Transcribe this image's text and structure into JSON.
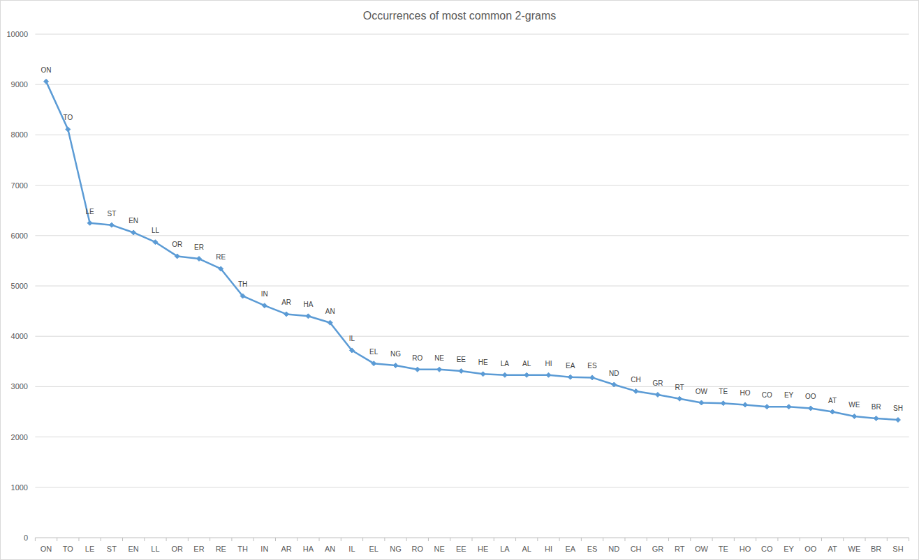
{
  "chart_data": {
    "type": "line",
    "title": "Occurrences of most common 2-grams",
    "categories": [
      "ON",
      "TO",
      "LE",
      "ST",
      "EN",
      "LL",
      "OR",
      "ER",
      "RE",
      "TH",
      "IN",
      "AR",
      "HA",
      "AN",
      "IL",
      "EL",
      "NG",
      "RO",
      "NE",
      "EE",
      "HE",
      "LA",
      "AL",
      "HI",
      "EA",
      "ES",
      "ND",
      "CH",
      "GR",
      "RT",
      "OW",
      "TE",
      "HO",
      "CO",
      "EY",
      "OO",
      "AT",
      "WE",
      "BR",
      "SH"
    ],
    "values": [
      9060,
      8110,
      6250,
      6210,
      6060,
      5870,
      5590,
      5540,
      5340,
      4800,
      4610,
      4440,
      4400,
      4270,
      3720,
      3460,
      3420,
      3340,
      3340,
      3310,
      3250,
      3230,
      3230,
      3230,
      3190,
      3180,
      3040,
      2910,
      2840,
      2760,
      2680,
      2670,
      2640,
      2600,
      2600,
      2570,
      2500,
      2410,
      2370,
      2340
    ],
    "color": "#5b9bd5",
    "marker": "diamond",
    "ylim": [
      0,
      10000
    ],
    "yticks": [
      0,
      1000,
      2000,
      3000,
      4000,
      5000,
      6000,
      7000,
      8000,
      9000,
      10000
    ],
    "grid": true
  }
}
